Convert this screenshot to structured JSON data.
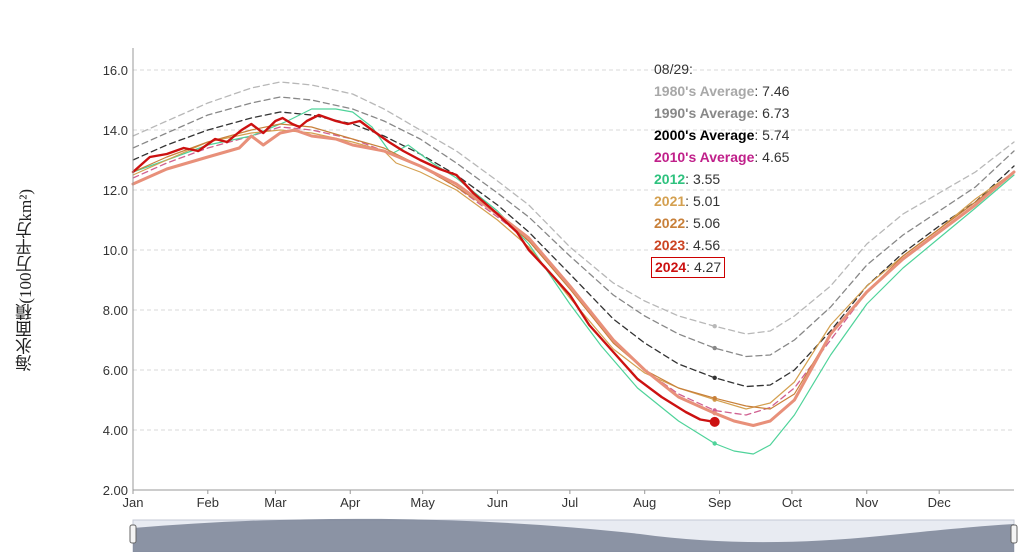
{
  "chart_data": {
    "type": "line",
    "ylabel": "海氷面積(100万平方km²)",
    "ylim": [
      2.0,
      16.0
    ],
    "yticks": [
      "2.00",
      "4.00",
      "6.00",
      "8.00",
      "10.0",
      "12.0",
      "14.0",
      "16.0"
    ],
    "x_months": [
      "Jan",
      "Feb",
      "Mar",
      "Apr",
      "May",
      "Jun",
      "Jul",
      "Aug",
      "Sep",
      "Oct",
      "Nov",
      "Dec"
    ],
    "xlim": [
      1,
      366
    ],
    "grid": true,
    "tooltip_date": "08/29:",
    "marker_day": 242,
    "series": [
      {
        "name": "1980's Average",
        "value": "7.46",
        "color": "#b8b8b8",
        "dash": true,
        "width": 1.3,
        "points": [
          [
            1,
            13.8
          ],
          [
            15,
            14.3
          ],
          [
            32,
            14.9
          ],
          [
            50,
            15.4
          ],
          [
            62,
            15.6
          ],
          [
            75,
            15.5
          ],
          [
            92,
            15.2
          ],
          [
            105,
            14.7
          ],
          [
            120,
            14.0
          ],
          [
            135,
            13.3
          ],
          [
            152,
            12.3
          ],
          [
            165,
            11.5
          ],
          [
            182,
            10.1
          ],
          [
            200,
            8.9
          ],
          [
            213,
            8.3
          ],
          [
            227,
            7.8
          ],
          [
            242,
            7.46
          ],
          [
            255,
            7.2
          ],
          [
            265,
            7.3
          ],
          [
            275,
            7.8
          ],
          [
            290,
            8.8
          ],
          [
            305,
            10.2
          ],
          [
            320,
            11.2
          ],
          [
            335,
            11.9
          ],
          [
            350,
            12.6
          ],
          [
            366,
            13.6
          ]
        ]
      },
      {
        "name": "1990's Average",
        "value": "6.73",
        "color": "#888888",
        "dash": true,
        "width": 1.3,
        "points": [
          [
            1,
            13.4
          ],
          [
            15,
            13.9
          ],
          [
            32,
            14.5
          ],
          [
            50,
            14.9
          ],
          [
            62,
            15.1
          ],
          [
            75,
            15.0
          ],
          [
            92,
            14.7
          ],
          [
            105,
            14.3
          ],
          [
            120,
            13.7
          ],
          [
            135,
            12.9
          ],
          [
            152,
            11.9
          ],
          [
            165,
            11.1
          ],
          [
            182,
            9.8
          ],
          [
            200,
            8.5
          ],
          [
            213,
            7.8
          ],
          [
            227,
            7.2
          ],
          [
            242,
            6.73
          ],
          [
            255,
            6.45
          ],
          [
            265,
            6.5
          ],
          [
            275,
            7.0
          ],
          [
            290,
            8.1
          ],
          [
            305,
            9.5
          ],
          [
            320,
            10.5
          ],
          [
            335,
            11.3
          ],
          [
            350,
            12.1
          ],
          [
            366,
            13.3
          ]
        ]
      },
      {
        "name": "2000's Average",
        "value": "5.74",
        "color": "#333333",
        "dash": true,
        "width": 1.3,
        "points": [
          [
            1,
            13.0
          ],
          [
            15,
            13.5
          ],
          [
            32,
            14.0
          ],
          [
            50,
            14.4
          ],
          [
            62,
            14.6
          ],
          [
            75,
            14.5
          ],
          [
            92,
            14.2
          ],
          [
            105,
            13.8
          ],
          [
            120,
            13.2
          ],
          [
            135,
            12.5
          ],
          [
            152,
            11.5
          ],
          [
            165,
            10.6
          ],
          [
            182,
            9.2
          ],
          [
            200,
            7.7
          ],
          [
            213,
            6.9
          ],
          [
            227,
            6.2
          ],
          [
            242,
            5.74
          ],
          [
            255,
            5.45
          ],
          [
            265,
            5.5
          ],
          [
            275,
            6.0
          ],
          [
            290,
            7.3
          ],
          [
            305,
            8.8
          ],
          [
            320,
            9.9
          ],
          [
            335,
            10.8
          ],
          [
            350,
            11.6
          ],
          [
            366,
            12.8
          ]
        ]
      },
      {
        "name": "2010's Average",
        "value": "4.65",
        "color": "#d06090",
        "dash": true,
        "width": 1.3,
        "points": [
          [
            1,
            12.4
          ],
          [
            15,
            12.9
          ],
          [
            32,
            13.4
          ],
          [
            50,
            13.8
          ],
          [
            62,
            14.1
          ],
          [
            75,
            14.0
          ],
          [
            92,
            13.7
          ],
          [
            105,
            13.3
          ],
          [
            120,
            12.8
          ],
          [
            135,
            12.1
          ],
          [
            152,
            11.1
          ],
          [
            165,
            10.3
          ],
          [
            182,
            8.8
          ],
          [
            200,
            7.0
          ],
          [
            213,
            6.0
          ],
          [
            227,
            5.2
          ],
          [
            242,
            4.65
          ],
          [
            255,
            4.5
          ],
          [
            265,
            4.75
          ],
          [
            275,
            5.4
          ],
          [
            290,
            7.0
          ],
          [
            305,
            8.6
          ],
          [
            320,
            9.7
          ],
          [
            335,
            10.6
          ],
          [
            350,
            11.5
          ],
          [
            366,
            12.6
          ]
        ]
      },
      {
        "name": "2012",
        "value": "3.55",
        "color": "#4fd39a",
        "dash": false,
        "width": 1.2,
        "points": [
          [
            1,
            12.6
          ],
          [
            15,
            13.0
          ],
          [
            32,
            13.5
          ],
          [
            50,
            13.8
          ],
          [
            65,
            14.3
          ],
          [
            75,
            14.7
          ],
          [
            85,
            14.7
          ],
          [
            92,
            14.6
          ],
          [
            100,
            14.1
          ],
          [
            108,
            13.2
          ],
          [
            115,
            13.5
          ],
          [
            125,
            12.9
          ],
          [
            135,
            12.4
          ],
          [
            152,
            11.3
          ],
          [
            165,
            10.2
          ],
          [
            182,
            8.2
          ],
          [
            195,
            6.8
          ],
          [
            210,
            5.4
          ],
          [
            227,
            4.3
          ],
          [
            242,
            3.55
          ],
          [
            250,
            3.3
          ],
          [
            258,
            3.2
          ],
          [
            265,
            3.5
          ],
          [
            275,
            4.5
          ],
          [
            290,
            6.5
          ],
          [
            305,
            8.2
          ],
          [
            320,
            9.4
          ],
          [
            335,
            10.4
          ],
          [
            350,
            11.4
          ],
          [
            366,
            12.5
          ]
        ]
      },
      {
        "name": "2021",
        "value": "5.01",
        "color": "#d4a050",
        "dash": false,
        "width": 1.2,
        "points": [
          [
            1,
            12.5
          ],
          [
            15,
            13.0
          ],
          [
            32,
            13.6
          ],
          [
            50,
            13.9
          ],
          [
            62,
            14.0
          ],
          [
            75,
            13.9
          ],
          [
            92,
            13.6
          ],
          [
            105,
            13.3
          ],
          [
            110,
            12.9
          ],
          [
            120,
            12.6
          ],
          [
            135,
            12.0
          ],
          [
            152,
            11.0
          ],
          [
            165,
            10.1
          ],
          [
            182,
            8.4
          ],
          [
            200,
            6.7
          ],
          [
            213,
            5.9
          ],
          [
            227,
            5.4
          ],
          [
            242,
            5.01
          ],
          [
            255,
            4.7
          ],
          [
            265,
            4.9
          ],
          [
            275,
            5.6
          ],
          [
            290,
            7.5
          ],
          [
            305,
            8.8
          ],
          [
            320,
            9.8
          ],
          [
            335,
            10.7
          ],
          [
            350,
            11.7
          ],
          [
            366,
            12.6
          ]
        ]
      },
      {
        "name": "2022",
        "value": "5.06",
        "color": "#c8803a",
        "dash": false,
        "width": 1.2,
        "points": [
          [
            1,
            12.6
          ],
          [
            15,
            13.1
          ],
          [
            32,
            13.6
          ],
          [
            50,
            14.0
          ],
          [
            62,
            14.2
          ],
          [
            75,
            14.1
          ],
          [
            92,
            13.7
          ],
          [
            105,
            13.4
          ],
          [
            120,
            12.8
          ],
          [
            135,
            12.1
          ],
          [
            152,
            11.2
          ],
          [
            165,
            10.3
          ],
          [
            182,
            8.7
          ],
          [
            200,
            6.9
          ],
          [
            213,
            6.0
          ],
          [
            227,
            5.4
          ],
          [
            242,
            5.06
          ],
          [
            255,
            4.8
          ],
          [
            265,
            4.7
          ],
          [
            275,
            5.2
          ],
          [
            290,
            7.2
          ],
          [
            305,
            8.6
          ],
          [
            320,
            9.8
          ],
          [
            335,
            10.7
          ],
          [
            350,
            11.6
          ],
          [
            366,
            12.6
          ]
        ]
      },
      {
        "name": "2023",
        "value": "4.56",
        "color": "#e8907a",
        "dash": false,
        "width": 3.0,
        "points": [
          [
            1,
            12.2
          ],
          [
            15,
            12.7
          ],
          [
            32,
            13.1
          ],
          [
            45,
            13.4
          ],
          [
            50,
            13.8
          ],
          [
            55,
            13.5
          ],
          [
            62,
            13.9
          ],
          [
            68,
            14.0
          ],
          [
            75,
            13.8
          ],
          [
            85,
            13.7
          ],
          [
            92,
            13.5
          ],
          [
            105,
            13.3
          ],
          [
            120,
            12.8
          ],
          [
            135,
            12.2
          ],
          [
            152,
            11.2
          ],
          [
            165,
            10.4
          ],
          [
            182,
            8.8
          ],
          [
            200,
            7.0
          ],
          [
            213,
            6.0
          ],
          [
            227,
            5.1
          ],
          [
            242,
            4.56
          ],
          [
            250,
            4.3
          ],
          [
            258,
            4.15
          ],
          [
            265,
            4.3
          ],
          [
            275,
            5.0
          ],
          [
            290,
            7.2
          ],
          [
            305,
            8.6
          ],
          [
            320,
            9.7
          ],
          [
            335,
            10.6
          ],
          [
            350,
            11.5
          ],
          [
            366,
            12.6
          ]
        ]
      },
      {
        "name": "2024",
        "value": "4.27",
        "color": "#cc1111",
        "dash": false,
        "width": 2.4,
        "points": [
          [
            1,
            12.6
          ],
          [
            8,
            13.1
          ],
          [
            15,
            13.2
          ],
          [
            22,
            13.4
          ],
          [
            28,
            13.3
          ],
          [
            35,
            13.7
          ],
          [
            40,
            13.6
          ],
          [
            46,
            14.0
          ],
          [
            50,
            14.2
          ],
          [
            55,
            13.9
          ],
          [
            60,
            14.3
          ],
          [
            63,
            14.4
          ],
          [
            67,
            14.2
          ],
          [
            70,
            14.1
          ],
          [
            73,
            14.3
          ],
          [
            78,
            14.5
          ],
          [
            85,
            14.3
          ],
          [
            90,
            14.2
          ],
          [
            95,
            14.3
          ],
          [
            100,
            14.0
          ],
          [
            107,
            13.6
          ],
          [
            113,
            13.3
          ],
          [
            120,
            13.0
          ],
          [
            128,
            12.7
          ],
          [
            135,
            12.5
          ],
          [
            142,
            11.9
          ],
          [
            152,
            11.2
          ],
          [
            160,
            10.6
          ],
          [
            165,
            10.0
          ],
          [
            172,
            9.4
          ],
          [
            182,
            8.5
          ],
          [
            190,
            7.5
          ],
          [
            200,
            6.6
          ],
          [
            210,
            5.7
          ],
          [
            220,
            5.1
          ],
          [
            230,
            4.6
          ],
          [
            236,
            4.35
          ],
          [
            242,
            4.27
          ]
        ]
      }
    ]
  }
}
